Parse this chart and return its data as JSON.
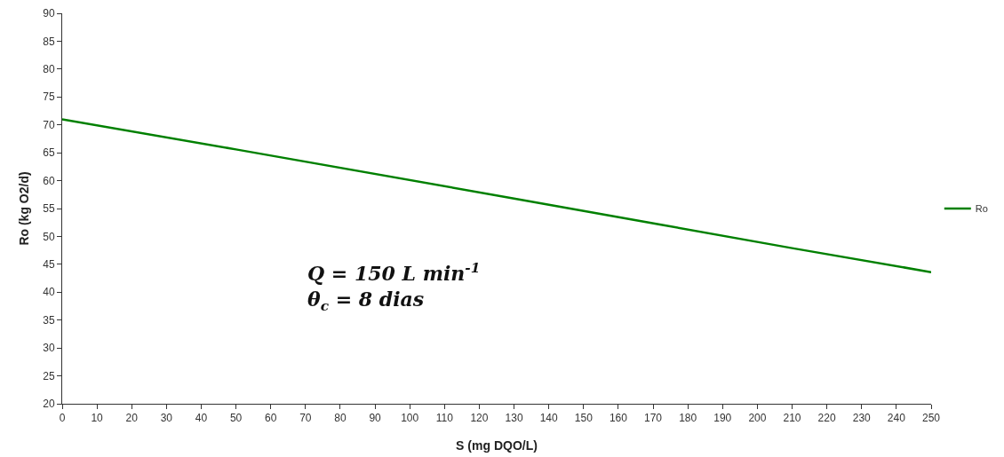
{
  "chart_data": {
    "type": "line",
    "xlabel": "S (mg DQO/L)",
    "ylabel": "Ro (kg O2/d)",
    "series": [
      {
        "name": "Ro",
        "color": "#008000",
        "x": [
          0,
          50,
          130,
          210,
          250
        ],
        "values": [
          71,
          65.6,
          56.8,
          47.9,
          43.6
        ]
      }
    ],
    "xlim": [
      0,
      250
    ],
    "xticks": [
      0,
      10,
      20,
      30,
      40,
      50,
      60,
      70,
      80,
      90,
      100,
      110,
      120,
      130,
      140,
      150,
      160,
      170,
      180,
      190,
      200,
      210,
      220,
      230,
      240,
      250
    ],
    "ylim": [
      20,
      90
    ],
    "yticks": [
      20,
      25,
      30,
      35,
      40,
      45,
      50,
      55,
      60,
      65,
      70,
      75,
      80,
      85,
      90
    ],
    "grid": false,
    "legend": "right",
    "marker": "none",
    "line_style": "solid",
    "annotations": [
      "Q = 150 L min$^{-1}$",
      "θ$_{c}$ = 8 dias"
    ]
  }
}
